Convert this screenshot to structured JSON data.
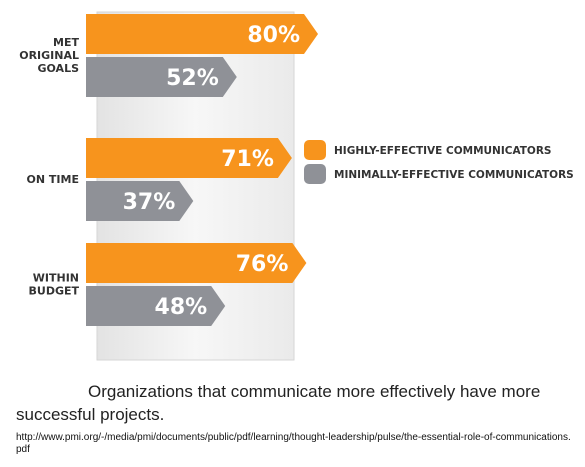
{
  "chart_data": {
    "type": "bar",
    "orientation": "horizontal",
    "categories": [
      [
        "MET",
        "ORIGINAL",
        "GOALS"
      ],
      [
        "ON TIME"
      ],
      [
        "WITHIN",
        "BUDGET"
      ]
    ],
    "series": [
      {
        "name": "HIGHLY-EFFECTIVE COMMUNICATORS",
        "color": "#f7941d",
        "values": [
          80,
          71,
          76
        ],
        "labels": [
          "80%",
          "71%",
          "76%"
        ]
      },
      {
        "name": "MINIMALLY-EFFECTIVE COMMUNICATORS",
        "color": "#8f9197",
        "values": [
          52,
          37,
          48
        ],
        "labels": [
          "52%",
          "37%",
          "48%"
        ]
      }
    ],
    "xlim": [
      0,
      100
    ],
    "legend_position": "right",
    "grid": false
  },
  "caption": "Organizations that communicate more effectively have more successful projects.",
  "source": "http://www.pmi.org/-/media/pmi/documents/public/pdf/learning/thought-leadership/pulse/the-essential-role-of-communications.pdf"
}
